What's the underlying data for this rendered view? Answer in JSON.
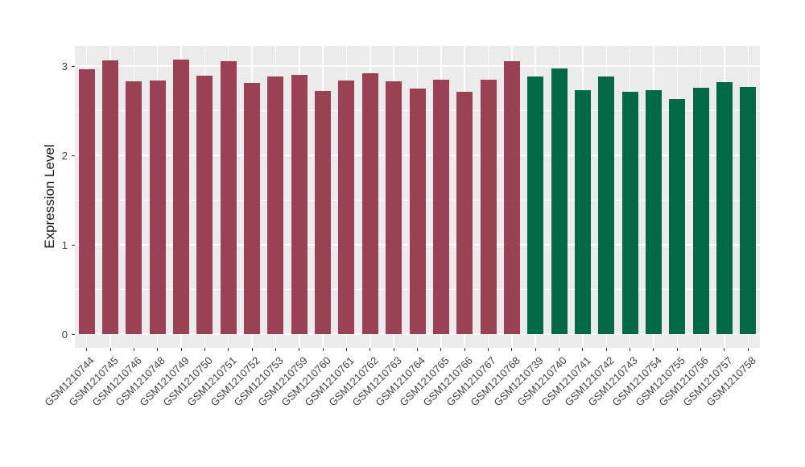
{
  "chart_data": {
    "type": "bar",
    "title": "",
    "xlabel": "",
    "ylabel": "Expression Level",
    "ylim": [
      0,
      3.22
    ],
    "yticks": [
      0,
      1,
      2,
      3
    ],
    "yticks_minor": [
      0.5,
      1.5,
      2.5
    ],
    "grid": "on",
    "legend_position": "none",
    "panel_background": "#EBEBEB",
    "gridline_color": "#FFFFFF",
    "tick_color": "#333333",
    "axis_text_color": "#404040",
    "categories": [
      "GSM1210744",
      "GSM1210745",
      "GSM1210746",
      "GSM1210748",
      "GSM1210749",
      "GSM1210750",
      "GSM1210751",
      "GSM1210752",
      "GSM1210753",
      "GSM1210759",
      "GSM1210760",
      "GSM1210761",
      "GSM1210762",
      "GSM1210763",
      "GSM1210764",
      "GSM1210765",
      "GSM1210766",
      "GSM1210767",
      "GSM1210768",
      "GSM1210739",
      "GSM1210740",
      "GSM1210741",
      "GSM1210742",
      "GSM1210743",
      "GSM1210754",
      "GSM1210755",
      "GSM1210756",
      "GSM1210757",
      "GSM1210758"
    ],
    "values": [
      2.96,
      3.06,
      2.83,
      2.84,
      3.07,
      2.89,
      3.05,
      2.81,
      2.88,
      2.9,
      2.72,
      2.84,
      2.92,
      2.83,
      2.75,
      2.85,
      2.71,
      2.85,
      3.05,
      2.88,
      2.97,
      2.73,
      2.88,
      2.71,
      2.73,
      2.63,
      2.76,
      2.82,
      2.77
    ],
    "bar_groups": [
      "maroon",
      "maroon",
      "maroon",
      "maroon",
      "maroon",
      "maroon",
      "maroon",
      "maroon",
      "maroon",
      "maroon",
      "maroon",
      "maroon",
      "maroon",
      "maroon",
      "maroon",
      "maroon",
      "maroon",
      "maroon",
      "maroon",
      "green",
      "green",
      "green",
      "green",
      "green",
      "green",
      "green",
      "green",
      "green",
      "green"
    ],
    "group_colors": {
      "maroon": "#9A4254",
      "green": "#026848"
    }
  }
}
